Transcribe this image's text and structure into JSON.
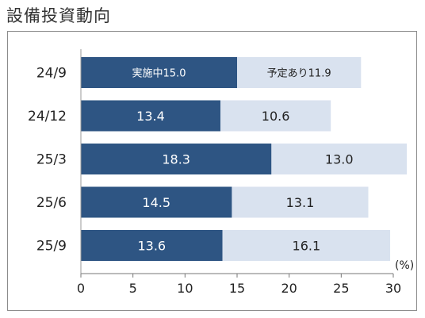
{
  "title": "設備投資動向",
  "chart_data": {
    "type": "bar",
    "orientation": "horizontal",
    "stacked": true,
    "title": "設備投資動向",
    "categories": [
      "24/9",
      "24/12",
      "25/3",
      "25/6",
      "25/9"
    ],
    "series": [
      {
        "name": "実施中",
        "values": [
          15.0,
          13.4,
          18.3,
          14.5,
          13.6
        ],
        "labels": [
          "実施中15.0",
          "13.4",
          "18.3",
          "14.5",
          "13.6"
        ],
        "color": "#2e5583",
        "label_color": "#ffffff"
      },
      {
        "name": "予定あり",
        "values": [
          11.9,
          10.6,
          13.0,
          13.1,
          16.1
        ],
        "labels": [
          "予定あり11.9",
          "10.6",
          "13.0",
          "13.1",
          "16.1"
        ],
        "color": "#d9e2ef",
        "label_color": "#222222"
      }
    ],
    "xlim": [
      0,
      30
    ],
    "xticks": [
      "0",
      "5",
      "10",
      "15",
      "20",
      "25",
      "30"
    ],
    "xtick_values": [
      0,
      5,
      10,
      15,
      20,
      25,
      30
    ],
    "unit": "(%)",
    "grid": false,
    "legend": "none"
  }
}
